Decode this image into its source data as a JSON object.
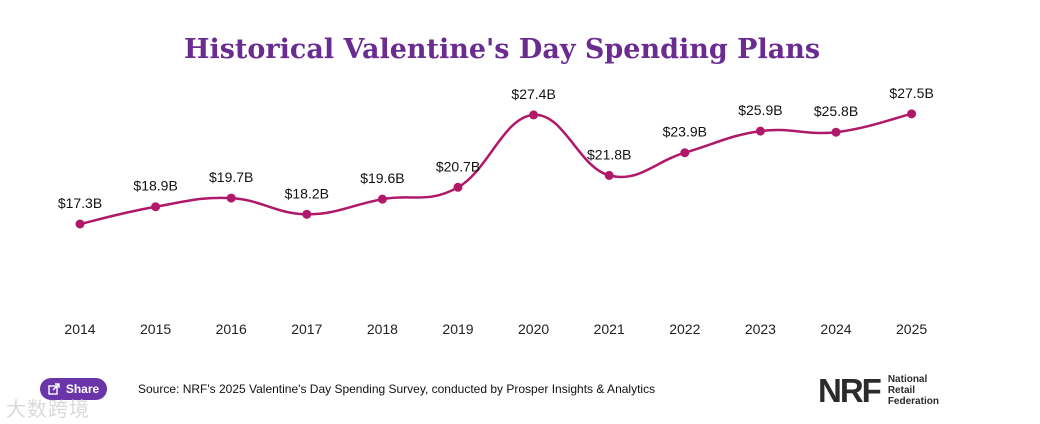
{
  "chart_data": {
    "type": "line",
    "title": "Historical Valentine's Day Spending Plans",
    "categories": [
      "2014",
      "2015",
      "2016",
      "2017",
      "2018",
      "2019",
      "2020",
      "2021",
      "2022",
      "2023",
      "2024",
      "2025"
    ],
    "values": [
      17.3,
      18.9,
      19.7,
      18.2,
      19.6,
      20.7,
      27.4,
      21.8,
      23.9,
      25.9,
      25.8,
      27.5
    ],
    "labels": [
      "$17.3B",
      "$18.9B",
      "$19.7B",
      "$18.2B",
      "$19.6B",
      "$20.7B",
      "$27.4B",
      "$21.8B",
      "$23.9B",
      "$25.9B",
      "$25.8B",
      "$27.5B"
    ],
    "ylim": [
      10,
      30
    ],
    "xlabel": "",
    "ylabel": "",
    "grid": false,
    "line_color": "#b0186a",
    "title_color": "#6a2c91"
  },
  "share_label": "Share",
  "source": "Source: NRF's 2025 Valentine's Day Spending Survey, conducted by Prosper Insights & Analytics",
  "logo": {
    "mark": "NRF",
    "line1": "National",
    "line2": "Retail",
    "line3": "Federation"
  },
  "watermark": "大数跨境",
  "colors": {
    "share_bg": "#6a35a8"
  }
}
